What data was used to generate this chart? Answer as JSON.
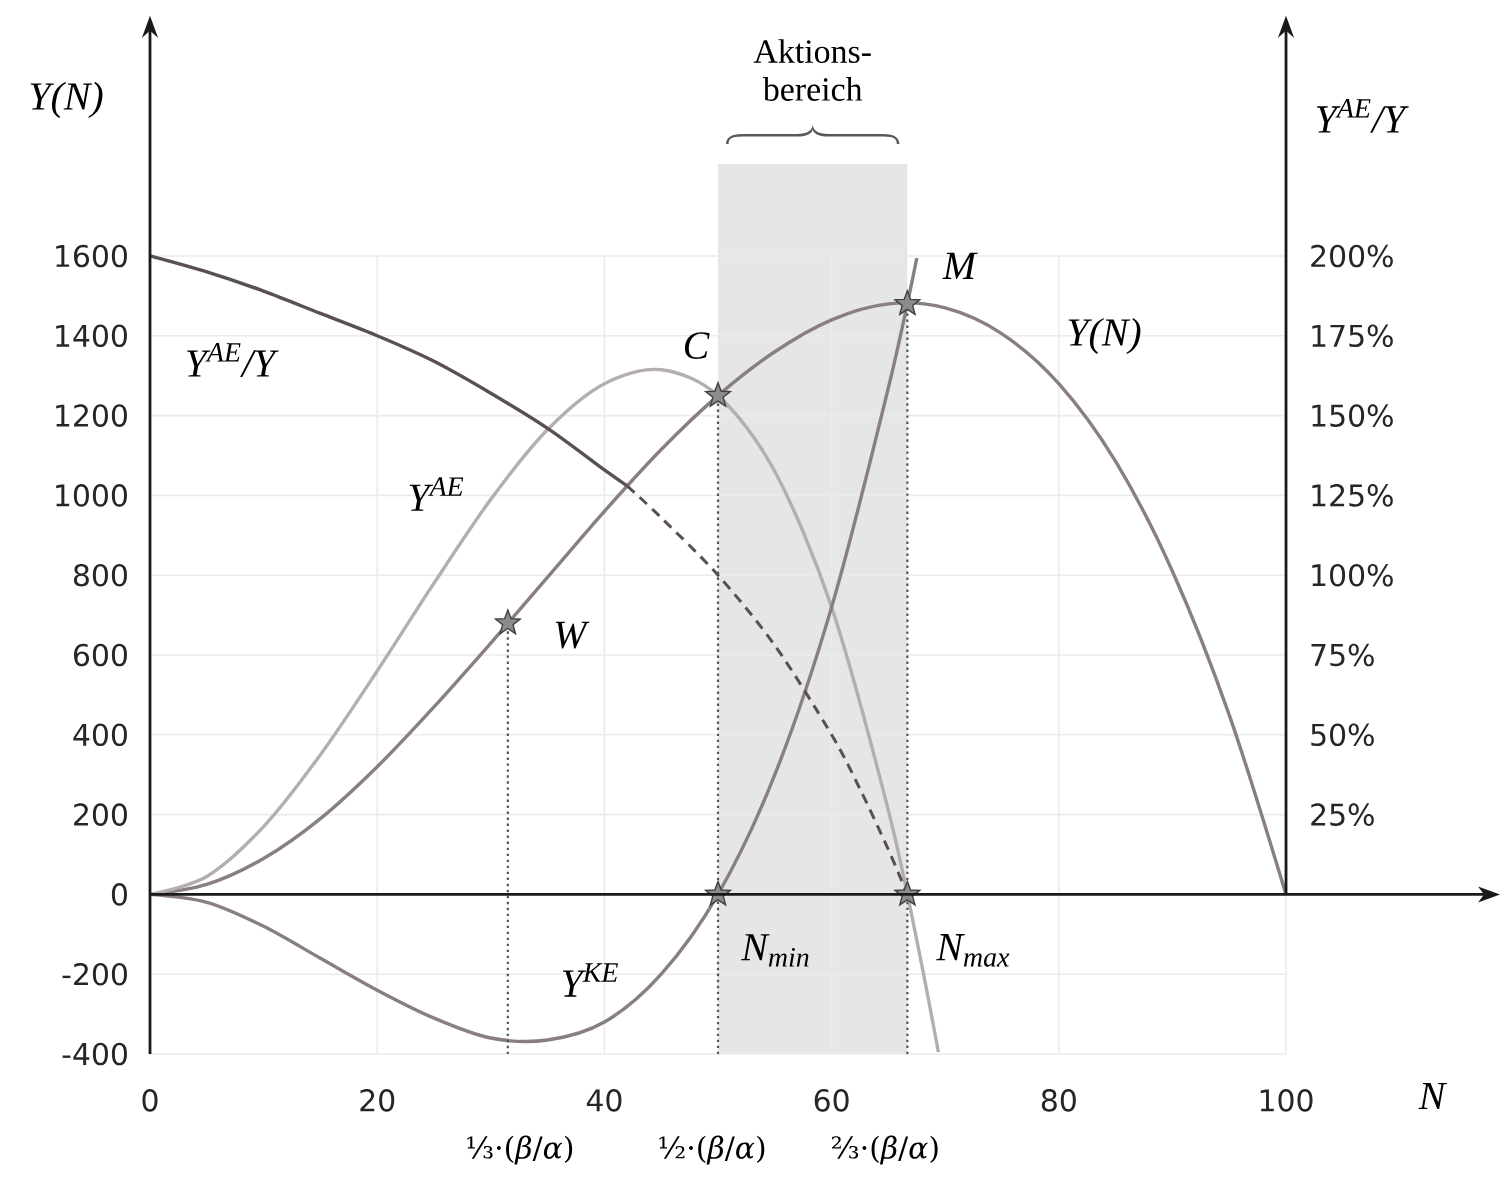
{
  "chart_data": {
    "type": "line",
    "xlabel": "N",
    "ylabel": "Y(N)",
    "y2label": "Y$^{AE}$/Y",
    "xlim": [
      0,
      100
    ],
    "ylim": [
      -400,
      2168
    ],
    "y2lim": [
      -50,
      271
    ],
    "xticks": [
      0,
      20,
      40,
      60,
      80,
      100
    ],
    "yticks": [
      -400,
      -200,
      0,
      200,
      400,
      600,
      800,
      1000,
      1200,
      1400,
      1600
    ],
    "y2ticks": [
      {
        "value": 25,
        "label": "25%"
      },
      {
        "value": 50,
        "label": "50%"
      },
      {
        "value": 75,
        "label": "75%"
      },
      {
        "value": 100,
        "label": "100%"
      },
      {
        "value": 125,
        "label": "125%"
      },
      {
        "value": 150,
        "label": "150%"
      },
      {
        "value": 175,
        "label": "175%"
      },
      {
        "value": 200,
        "label": "200%"
      }
    ],
    "grid": true,
    "series": [
      {
        "name": "Y(N)",
        "color": "#8a7f7f",
        "x": [
          0,
          5,
          10,
          15,
          20,
          25,
          30,
          35,
          40,
          45,
          50,
          55,
          60,
          65,
          70,
          75,
          80,
          85,
          90,
          95,
          100
        ],
        "values": [
          0,
          25,
          90,
          190,
          320,
          470,
          630,
          795,
          960,
          1115,
          1250,
          1360,
          1440,
          1480,
          1470,
          1405,
          1280,
          1085,
          810,
          450,
          0
        ]
      },
      {
        "name": "Y$^{AE}$",
        "color": "#b5aeae",
        "x": [
          0,
          5,
          10,
          15,
          20,
          25,
          30,
          35,
          40,
          45,
          50,
          55,
          60,
          65,
          67.5,
          69.4
        ],
        "values": [
          0,
          45,
          170,
          350,
          560,
          780,
          990,
          1165,
          1280,
          1315,
          1250,
          1060,
          720,
          210,
          -115,
          -395
        ]
      },
      {
        "name": "Y$^{KE}$",
        "color": "#8a7f7f",
        "x": [
          0,
          5,
          10,
          15,
          20,
          25,
          30,
          35,
          40,
          45,
          50,
          55,
          60,
          65,
          67.5
        ],
        "values": [
          0,
          -20,
          -80,
          -160,
          -240,
          -310,
          -360,
          -365,
          -320,
          -200,
          0,
          300,
          720,
          1270,
          1595
        ]
      },
      {
        "name": "Y$^{AE}$/Y",
        "color": "#5b5050",
        "axis": "y2",
        "x": [
          0,
          5,
          10,
          15,
          20,
          25,
          30,
          35,
          40,
          42
        ],
        "values": [
          200,
          195,
          189,
          182,
          175,
          167,
          157,
          146,
          133,
          128
        ]
      },
      {
        "color": "#5b5050",
        "axis": "y2",
        "line_style": "dashed",
        "x": [
          42,
          45,
          50,
          55,
          60,
          62.5,
          65,
          66.67
        ],
        "values": [
          128,
          118,
          100,
          78,
          50,
          33,
          14,
          0
        ]
      },
      {
        "color": "#555555",
        "line_style": "dotted",
        "x": [
          31.5,
          31.5
        ],
        "values": [
          -400,
          680
        ]
      },
      {
        "color": "#555555",
        "line_style": "dotted",
        "x": [
          50,
          50
        ],
        "values": [
          -400,
          1250
        ]
      },
      {
        "color": "#555555",
        "line_style": "dotted",
        "x": [
          66.67,
          66.67
        ],
        "values": [
          -400,
          1480
        ]
      },
      {
        "type": "scatter",
        "marker": "star",
        "color": "#8c8c8c",
        "x": [
          31.5,
          50,
          66.67,
          50,
          66.67
        ],
        "values": [
          680,
          1250,
          1480,
          0,
          0
        ]
      }
    ],
    "bands": [
      {
        "axis": "x",
        "from": 50,
        "to": 66.67,
        "label": "Aktions-bereich",
        "color": "#e6e6e6"
      }
    ],
    "annotations": [
      {
        "text": "W",
        "x": 31.5,
        "y": 680
      },
      {
        "text": "C",
        "x": 50,
        "y": 1250
      },
      {
        "text": "M",
        "x": 66.67,
        "y": 1480
      },
      {
        "text": "N$_{min}$",
        "x": 50,
        "y": 0
      },
      {
        "text": "N$_{max}$",
        "x": 66.67,
        "y": 0
      },
      {
        "text": "⅓·(*β*/*α*)",
        "x": 31.5,
        "y": -400
      },
      {
        "text": "½·(*β*/*α*)",
        "x": 50,
        "y": -400
      },
      {
        "text": "⅔·(*β*/*α*)",
        "x": 66.67,
        "y": -400
      }
    ]
  }
}
